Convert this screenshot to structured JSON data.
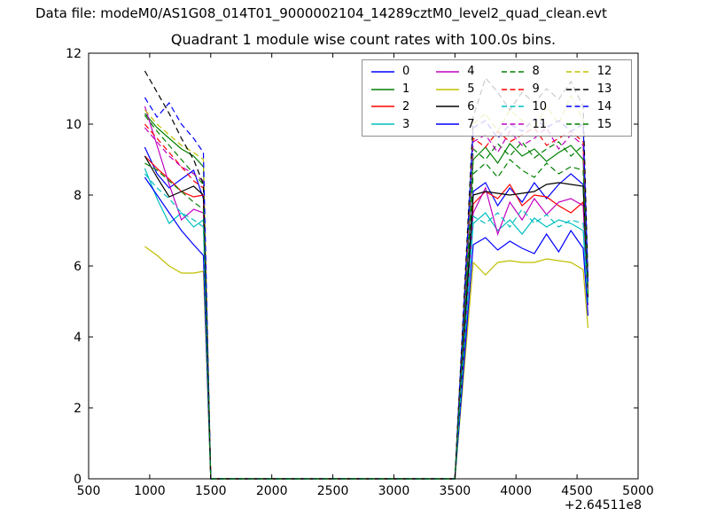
{
  "figure": {
    "data_file_text": "Data file: modeM0/AS1G08_014T01_9000002104_14289cztM0_level2_quad_clean.evt"
  },
  "chart_data": {
    "type": "line",
    "title": "Quadrant 1 module wise count rates with 100.0s bins.",
    "xlabel": "",
    "ylabel": "",
    "xlim": [
      500,
      5000
    ],
    "ylim": [
      0,
      12
    ],
    "x_ticks": [
      500,
      1000,
      1500,
      2000,
      2500,
      3000,
      3500,
      4000,
      4500,
      5000
    ],
    "y_ticks": [
      0,
      2,
      4,
      6,
      8,
      10,
      12
    ],
    "x_offset_label": "+2.64511e8",
    "grid": false,
    "legend_position": "upper right",
    "legend_columns": 4,
    "x": [
      960,
      1060,
      1160,
      1260,
      1360,
      1440,
      1500,
      3500,
      3650,
      3750,
      3850,
      3950,
      4050,
      4150,
      4250,
      4350,
      4450,
      4550,
      4590
    ],
    "series": [
      {
        "name": "0",
        "color": "#0000ff",
        "style": "solid",
        "values": [
          9.35,
          8.6,
          8.2,
          8.45,
          8.7,
          7.9,
          0,
          0,
          8.1,
          8.35,
          7.7,
          8.2,
          7.8,
          8.35,
          7.9,
          8.3,
          8.6,
          8.3,
          5.0
        ]
      },
      {
        "name": "1",
        "color": "#007f00",
        "style": "solid",
        "values": [
          10.3,
          9.9,
          9.6,
          9.3,
          9.1,
          8.8,
          0,
          0,
          9.0,
          9.35,
          8.9,
          9.45,
          9.1,
          9.3,
          8.95,
          9.2,
          9.4,
          9.0,
          5.2
        ]
      },
      {
        "name": "2",
        "color": "#ff0000",
        "style": "solid",
        "values": [
          9.1,
          8.75,
          8.45,
          8.1,
          7.95,
          8.0,
          0,
          0,
          7.75,
          8.1,
          7.9,
          8.3,
          7.7,
          8.0,
          7.95,
          7.7,
          7.5,
          7.8,
          5.0
        ]
      },
      {
        "name": "3",
        "color": "#00bfbf",
        "style": "solid",
        "values": [
          8.75,
          7.9,
          7.2,
          7.5,
          7.1,
          7.3,
          0,
          0,
          7.2,
          7.5,
          7.0,
          7.3,
          6.9,
          7.35,
          7.1,
          7.3,
          7.2,
          7.0,
          4.9
        ]
      },
      {
        "name": "4",
        "color": "#bf00bf",
        "style": "solid",
        "values": [
          10.5,
          9.4,
          8.3,
          7.3,
          7.6,
          7.5,
          0,
          0,
          7.5,
          8.2,
          6.9,
          7.8,
          7.3,
          7.9,
          7.45,
          7.8,
          7.9,
          7.7,
          4.9
        ]
      },
      {
        "name": "5",
        "color": "#bfbf00",
        "style": "solid",
        "values": [
          6.55,
          6.3,
          6.0,
          5.8,
          5.8,
          5.85,
          0,
          0,
          6.1,
          5.75,
          6.1,
          6.15,
          6.1,
          6.1,
          6.2,
          6.15,
          6.1,
          5.9,
          4.25
        ]
      },
      {
        "name": "6",
        "color": "#000000",
        "style": "solid",
        "values": [
          9.1,
          8.5,
          7.95,
          8.1,
          8.25,
          8.0,
          0,
          0,
          8.0,
          8.1,
          8.05,
          8.0,
          8.05,
          8.1,
          8.3,
          8.35,
          8.3,
          8.25,
          5.1
        ]
      },
      {
        "name": "7",
        "color": "#0000ff",
        "style": "solid",
        "values": [
          8.5,
          8.0,
          7.5,
          7.0,
          6.6,
          6.3,
          0,
          0,
          6.6,
          6.8,
          6.45,
          6.7,
          6.5,
          6.35,
          6.9,
          6.4,
          7.0,
          6.5,
          4.6
        ]
      },
      {
        "name": "8",
        "color": "#007f00",
        "style": "dashed",
        "values": [
          10.25,
          9.8,
          9.4,
          9.0,
          8.6,
          8.3,
          0,
          0,
          9.3,
          9.0,
          9.45,
          9.1,
          9.5,
          9.05,
          9.3,
          9.5,
          9.1,
          9.4,
          5.3
        ]
      },
      {
        "name": "9",
        "color": "#ff0000",
        "style": "dashed",
        "values": [
          10.0,
          9.6,
          9.2,
          8.8,
          8.4,
          8.2,
          0,
          0,
          9.6,
          9.35,
          9.8,
          9.5,
          9.7,
          9.9,
          9.4,
          9.6,
          9.8,
          9.5,
          5.4
        ]
      },
      {
        "name": "10",
        "color": "#00bfbf",
        "style": "dashed",
        "values": [
          8.6,
          8.2,
          7.9,
          7.5,
          7.3,
          7.1,
          0,
          0,
          7.4,
          7.2,
          7.5,
          7.1,
          7.6,
          7.2,
          7.45,
          7.1,
          7.3,
          7.2,
          4.95
        ]
      },
      {
        "name": "11",
        "color": "#bf00bf",
        "style": "dashed",
        "values": [
          9.9,
          9.5,
          9.1,
          8.8,
          8.6,
          8.4,
          0,
          0,
          9.5,
          9.7,
          9.2,
          9.8,
          9.4,
          9.6,
          9.9,
          9.3,
          9.7,
          9.4,
          5.35
        ]
      },
      {
        "name": "12",
        "color": "#bfbf00",
        "style": "dashed",
        "values": [
          10.4,
          10.0,
          9.7,
          9.4,
          9.2,
          9.0,
          0,
          0,
          10.0,
          10.3,
          9.8,
          10.4,
          10.1,
          9.9,
          10.5,
          10.0,
          10.8,
          10.1,
          5.5
        ]
      },
      {
        "name": "13",
        "color": "#000000",
        "style": "dashed",
        "values": [
          11.5,
          10.9,
          10.3,
          9.6,
          9.0,
          8.3,
          0,
          0,
          10.2,
          11.3,
          10.9,
          10.4,
          10.9,
          10.6,
          11.0,
          10.7,
          11.2,
          10.5,
          5.6
        ]
      },
      {
        "name": "14",
        "color": "#0000ff",
        "style": "dashed",
        "values": [
          10.75,
          10.2,
          10.6,
          10.0,
          9.6,
          9.2,
          0,
          0,
          9.9,
          10.1,
          9.6,
          10.0,
          9.8,
          10.15,
          9.9,
          10.1,
          9.8,
          10.0,
          5.5
        ]
      },
      {
        "name": "15",
        "color": "#007f00",
        "style": "dashed",
        "values": [
          8.9,
          8.7,
          8.4,
          8.1,
          7.8,
          7.6,
          0,
          0,
          8.6,
          8.9,
          8.5,
          9.0,
          8.7,
          8.5,
          8.9,
          8.6,
          8.8,
          8.7,
          5.2
        ]
      }
    ]
  }
}
